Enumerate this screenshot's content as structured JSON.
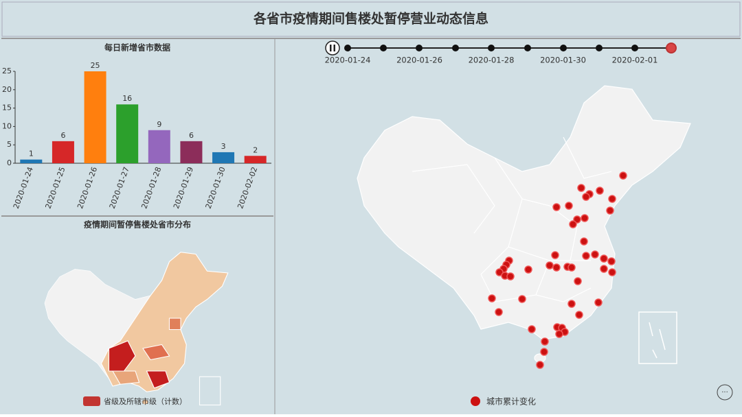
{
  "title": "各省市疫情期间售楼处暂停营业动态信息",
  "timeline": {
    "labels": [
      "2020-01-24",
      "2020-01-26",
      "2020-01-28",
      "2020-01-30",
      "2020-02-01"
    ]
  },
  "chart_data": [
    {
      "type": "bar",
      "title": "每日新增省市数据",
      "categories": [
        "2020-01-24",
        "2020-01-25",
        "2020-01-26",
        "2020-01-27",
        "2020-01-28",
        "2020-01-29",
        "2020-01-30",
        "2020-02-02"
      ],
      "values": [
        1,
        6,
        25,
        16,
        9,
        6,
        3,
        2
      ],
      "colors": [
        "#1f77b4",
        "#d62728",
        "#ff7f0e",
        "#2ca02c",
        "#9467bd",
        "#8c2d5a",
        "#1f77b4",
        "#d62728"
      ],
      "ylim": [
        0,
        25
      ],
      "yticks": [
        0,
        5,
        10,
        15,
        20,
        25
      ]
    },
    {
      "type": "choropleth",
      "title": "疫情期间暂停售楼处省市分布",
      "legend": "省级及所辖市级（计数）",
      "color": "#c23531"
    },
    {
      "type": "scatter-map",
      "legend": "城市累计变化",
      "color": "#cc1111"
    }
  ]
}
